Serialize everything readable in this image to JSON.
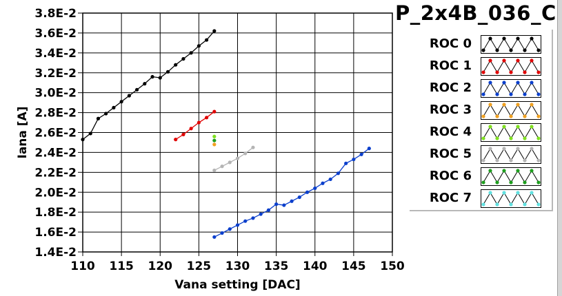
{
  "chart_data": {
    "type": "line",
    "title": "P_2x4B_036_C",
    "xlabel": "Vana setting [DAC]",
    "ylabel": "Iana [A]",
    "xlim": [
      110,
      150
    ],
    "ylim": [
      0.014,
      0.038
    ],
    "xticks": [
      "110",
      "115",
      "120",
      "125",
      "130",
      "135",
      "140",
      "145",
      "150"
    ],
    "yticks": [
      "1.4E-2",
      "1.6E-2",
      "1.8E-2",
      "2.0E-2",
      "2.2E-2",
      "2.4E-2",
      "2.6E-2",
      "2.8E-2",
      "3.0E-2",
      "3.2E-2",
      "3.4E-2",
      "3.6E-2",
      "3.8E-2"
    ],
    "grid": true,
    "legend_position": "right",
    "series": [
      {
        "name": "ROC 0",
        "color": "#000000",
        "x": [
          110,
          111,
          112,
          113,
          114,
          115,
          116,
          117,
          118,
          119,
          120,
          121,
          122,
          123,
          124,
          125,
          126,
          127
        ],
        "y": [
          0.0253,
          0.0259,
          0.0274,
          0.0279,
          0.0285,
          0.0291,
          0.0297,
          0.0303,
          0.0309,
          0.0316,
          0.0315,
          0.0321,
          0.0328,
          0.0334,
          0.034,
          0.0347,
          0.0353,
          0.0362
        ]
      },
      {
        "name": "ROC 1",
        "color": "#e00000",
        "x": [
          122,
          123,
          124,
          125,
          126,
          127
        ],
        "y": [
          0.0253,
          0.0258,
          0.0264,
          0.027,
          0.0275,
          0.0281
        ]
      },
      {
        "name": "ROC 2",
        "color": "#0b3fcc",
        "x": [
          127,
          128,
          129,
          130,
          131,
          132,
          133,
          134,
          135,
          136,
          137,
          138,
          139,
          140,
          141,
          142,
          143,
          144,
          145,
          146,
          147
        ],
        "y": [
          0.0155,
          0.0159,
          0.0163,
          0.0167,
          0.0171,
          0.0174,
          0.0178,
          0.0182,
          0.0188,
          0.0187,
          0.0191,
          0.0195,
          0.02,
          0.0204,
          0.0209,
          0.0213,
          0.0219,
          0.0229,
          0.0233,
          0.0238,
          0.0244
        ]
      },
      {
        "name": "ROC 3",
        "color": "#f0a020",
        "x": [
          127
        ],
        "y": [
          0.0248
        ]
      },
      {
        "name": "ROC 4",
        "color": "#80e020",
        "x": [
          127
        ],
        "y": [
          0.0256
        ]
      },
      {
        "name": "ROC 5",
        "color": "#b4b4b4",
        "x": [
          127,
          128,
          129,
          130,
          131,
          132
        ],
        "y": [
          0.0222,
          0.0226,
          0.023,
          0.0234,
          0.0239,
          0.0245
        ]
      },
      {
        "name": "ROC 6",
        "color": "#1e9e1e",
        "x": [
          127
        ],
        "y": [
          0.0252
        ]
      },
      {
        "name": "ROC 7",
        "color": "#60e0e0",
        "x": [],
        "y": []
      }
    ]
  }
}
